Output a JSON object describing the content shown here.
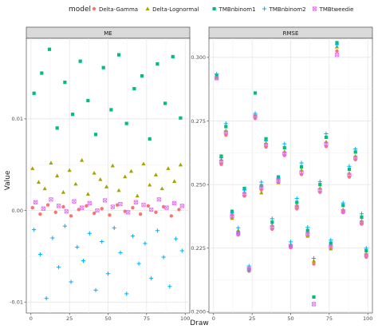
{
  "legend": {
    "title": "model",
    "items": [
      {
        "label": "Delta-Gamma",
        "shape": "circle",
        "color": "#F8766D"
      },
      {
        "label": "Delta-Lognormal",
        "shape": "triangle",
        "color": "#A3A500"
      },
      {
        "label": "TMBnbinom1",
        "shape": "square",
        "color": "#00BF7D"
      },
      {
        "label": "TMBnbinom2",
        "shape": "plus",
        "color": "#00B0F6"
      },
      {
        "label": "TMBtweedie",
        "shape": "boxx",
        "color": "#E76BF3"
      }
    ]
  },
  "axis": {
    "x_title": "Draw",
    "y_title": "Value"
  },
  "chart_data": [
    {
      "type": "scatter",
      "panel": "ME",
      "xlabel": "Draw",
      "ylabel": "Value",
      "xlim": [
        -3,
        103
      ],
      "ylim": [
        -0.0112,
        0.0188
      ],
      "x_ticks": [
        0,
        25,
        50,
        75,
        100
      ],
      "y_ticks": [
        -0.01,
        0.0,
        0.01
      ],
      "y_tick_labels": [
        "-0.01",
        "0.00",
        "0.01"
      ],
      "grid": true,
      "series": [
        {
          "name": "Delta-Gamma",
          "shape": "circle",
          "color": "#F8766D",
          "x": [
            1,
            6,
            11,
            16,
            21,
            26,
            31,
            36,
            41,
            46,
            51,
            56,
            61,
            66,
            71,
            76,
            81,
            86,
            91,
            96
          ],
          "y": [
            0.0003,
            -0.0004,
            0.0006,
            -0.0002,
            0.0004,
            -0.0006,
            0.0001,
            0.0005,
            -0.0003,
            0.0002,
            -0.0005,
            0.0006,
            -0.0001,
            0.0003,
            -0.0004,
            0.0005,
            -0.0002,
            0.0004,
            -0.0006,
            0.0001
          ]
        },
        {
          "name": "Delta-Lognormal",
          "shape": "triangle",
          "color": "#A3A500",
          "x": [
            1,
            5,
            9,
            13,
            17,
            21,
            25,
            29,
            33,
            37,
            41,
            45,
            49,
            53,
            57,
            61,
            65,
            69,
            73,
            77,
            81,
            85,
            89,
            93,
            97
          ],
          "y": [
            0.0046,
            0.0031,
            0.0024,
            0.0052,
            0.0038,
            0.002,
            0.0044,
            0.0029,
            0.0055,
            0.0018,
            0.0041,
            0.0034,
            0.0026,
            0.0049,
            0.0022,
            0.0037,
            0.0043,
            0.0016,
            0.0051,
            0.0028,
            0.0039,
            0.0024,
            0.0046,
            0.0032,
            0.005
          ]
        },
        {
          "name": "TMBnbinom1",
          "shape": "square",
          "color": "#00BF7D",
          "x": [
            2,
            7,
            12,
            17,
            22,
            27,
            32,
            37,
            42,
            47,
            52,
            57,
            62,
            67,
            72,
            77,
            82,
            87,
            92,
            97
          ],
          "y": [
            0.0128,
            0.015,
            0.0176,
            0.009,
            0.014,
            0.0105,
            0.0163,
            0.012,
            0.0083,
            0.0156,
            0.011,
            0.017,
            0.0095,
            0.0133,
            0.0147,
            0.0078,
            0.016,
            0.0117,
            0.0168,
            0.0101
          ]
        },
        {
          "name": "TMBnbinom2",
          "shape": "plus",
          "color": "#00B0F6",
          "x": [
            2,
            6,
            10,
            14,
            18,
            22,
            26,
            30,
            34,
            38,
            42,
            46,
            50,
            54,
            58,
            62,
            66,
            70,
            74,
            78,
            82,
            86,
            90,
            94,
            98
          ],
          "y": [
            -0.0021,
            -0.0048,
            -0.0096,
            -0.003,
            -0.0062,
            -0.0017,
            -0.0078,
            -0.004,
            -0.0055,
            -0.0025,
            -0.0087,
            -0.0034,
            -0.0069,
            -0.0019,
            -0.0046,
            -0.0091,
            -0.0028,
            -0.0058,
            -0.0036,
            -0.0074,
            -0.0022,
            -0.0051,
            -0.0083,
            -0.0031,
            -0.0044
          ]
        },
        {
          "name": "TMBtweedie",
          "shape": "boxx",
          "color": "#E76BF3",
          "x": [
            3,
            8,
            13,
            18,
            23,
            28,
            33,
            38,
            43,
            48,
            53,
            58,
            63,
            68,
            73,
            78,
            83,
            88,
            93,
            98
          ],
          "y": [
            0.0009,
            0.0002,
            0.0012,
            0.0005,
            -0.0001,
            0.001,
            0.0003,
            0.0008,
            0.0,
            0.0011,
            0.0004,
            0.0007,
            -0.0002,
            0.0009,
            0.0006,
            0.0001,
            0.0012,
            0.0003,
            0.0008,
            0.0005
          ]
        }
      ]
    },
    {
      "type": "scatter",
      "panel": "RMSE",
      "xlabel": "Draw",
      "xlim": [
        -3,
        103
      ],
      "ylim": [
        0.1995,
        0.3075
      ],
      "x_ticks": [
        0,
        25,
        50,
        75,
        100
      ],
      "y_ticks": [
        0.2,
        0.225,
        0.25,
        0.275,
        0.3
      ],
      "y_tick_labels": [
        "0.200",
        "0.225",
        "0.250",
        "0.275",
        "0.300"
      ],
      "grid": true,
      "series": [
        {
          "name": "Delta-Gamma",
          "shape": "circle",
          "color": "#F8766D",
          "x": [
            2,
            5,
            8,
            12,
            16,
            20,
            23,
            27,
            31,
            34,
            38,
            42,
            46,
            50,
            54,
            57,
            61,
            65,
            69,
            73,
            76,
            80,
            84,
            88,
            92,
            96,
            99
          ],
          "y": [
            0.292,
            0.258,
            0.2695,
            0.238,
            0.2302,
            0.2455,
            0.216,
            0.276,
            0.248,
            0.2648,
            0.2325,
            0.252,
            0.2615,
            0.2252,
            0.2405,
            0.254,
            0.231,
            0.2188,
            0.247,
            0.265,
            0.226,
            0.3025,
            0.239,
            0.253,
            0.2598,
            0.2345,
            0.2215
          ]
        },
        {
          "name": "Delta-Lognormal",
          "shape": "triangle",
          "color": "#A3A500",
          "x": [
            2,
            5,
            8,
            12,
            16,
            20,
            23,
            27,
            31,
            34,
            38,
            42,
            46,
            50,
            54,
            57,
            61,
            65,
            69,
            73,
            76,
            80,
            84,
            88,
            92,
            96,
            99
          ],
          "y": [
            0.2922,
            0.2598,
            0.2712,
            0.2368,
            0.232,
            0.247,
            0.2172,
            0.2773,
            0.2468,
            0.2663,
            0.234,
            0.2508,
            0.263,
            0.2265,
            0.2418,
            0.2557,
            0.2298,
            0.22,
            0.2486,
            0.2668,
            0.2248,
            0.3042,
            0.2402,
            0.2545,
            0.2612,
            0.2358,
            0.2228
          ]
        },
        {
          "name": "TMBnbinom1",
          "shape": "square",
          "color": "#00BF7D",
          "x": [
            2,
            5,
            8,
            12,
            16,
            20,
            23,
            27,
            31,
            34,
            38,
            42,
            46,
            50,
            54,
            57,
            61,
            65,
            69,
            73,
            76,
            80,
            84,
            88,
            92,
            96,
            99
          ],
          "y": [
            0.2928,
            0.2612,
            0.2728,
            0.2395,
            0.2312,
            0.2485,
            0.2164,
            0.286,
            0.2495,
            0.268,
            0.2352,
            0.253,
            0.2645,
            0.226,
            0.243,
            0.257,
            0.232,
            0.2058,
            0.25,
            0.2686,
            0.227,
            0.3058,
            0.2418,
            0.256,
            0.2628,
            0.2372,
            0.224
          ]
        },
        {
          "name": "TMBnbinom2",
          "shape": "plus",
          "color": "#00B0F6",
          "x": [
            2,
            5,
            8,
            12,
            16,
            20,
            23,
            27,
            31,
            34,
            38,
            42,
            46,
            50,
            54,
            57,
            61,
            65,
            69,
            73,
            76,
            80,
            84,
            88,
            92,
            96,
            99
          ],
          "y": [
            0.2935,
            0.2605,
            0.274,
            0.2388,
            0.233,
            0.2478,
            0.218,
            0.278,
            0.251,
            0.2672,
            0.2366,
            0.2525,
            0.266,
            0.2275,
            0.2445,
            0.2585,
            0.2332,
            0.221,
            0.2512,
            0.27,
            0.2282,
            0.305,
            0.2428,
            0.2572,
            0.264,
            0.2385,
            0.225
          ]
        },
        {
          "name": "TMBtweedie",
          "shape": "boxx",
          "color": "#E76BF3",
          "x": [
            2,
            5,
            8,
            12,
            16,
            20,
            23,
            27,
            31,
            34,
            38,
            42,
            46,
            50,
            54,
            57,
            61,
            65,
            69,
            73,
            76,
            80,
            84,
            88,
            92,
            96,
            99
          ],
          "y": [
            0.2918,
            0.259,
            0.2705,
            0.2375,
            0.2308,
            0.2462,
            0.2168,
            0.2768,
            0.2488,
            0.2656,
            0.2332,
            0.2515,
            0.2622,
            0.2258,
            0.2412,
            0.2548,
            0.2305,
            0.203,
            0.2478,
            0.266,
            0.2255,
            0.301,
            0.2395,
            0.2538,
            0.2605,
            0.235,
            0.2222
          ]
        }
      ]
    }
  ]
}
